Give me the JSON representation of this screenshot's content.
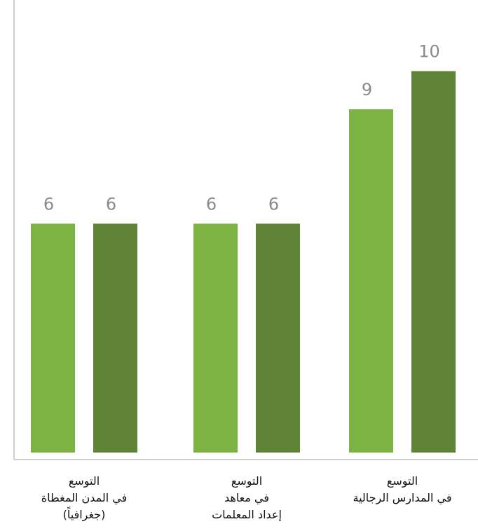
{
  "chart_data": {
    "type": "bar",
    "categories": [
      [
        "التوسع",
        "في المدن المغطاة",
        "(جغرافياً)"
      ],
      [
        "التوسع",
        "في معاهد",
        "إعداد المعلمات"
      ],
      [
        "التوسع",
        "في المدارس الرجالية"
      ]
    ],
    "series": [
      {
        "values": [
          6,
          6,
          9
        ],
        "color": "#7cb342"
      },
      {
        "values": [
          6,
          6,
          10
        ],
        "color": "#5e8236"
      }
    ],
    "ylim": [
      0,
      11
    ],
    "grid": false,
    "legend": "none"
  }
}
